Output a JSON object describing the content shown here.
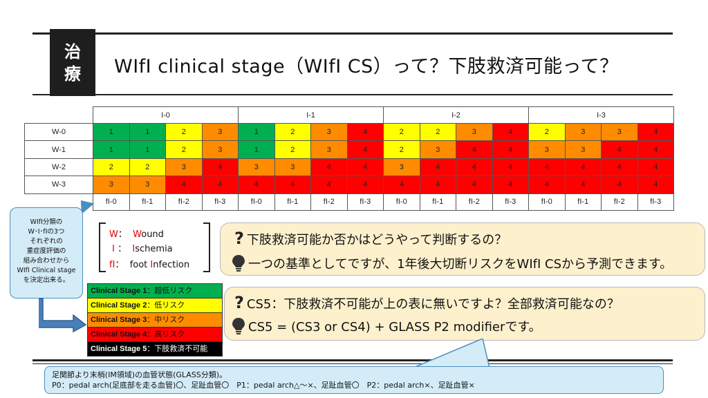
{
  "header": {
    "badge_line1": "治",
    "badge_line2": "療",
    "title": "WIfI clinical stage（WIfI CS）って？下肢救済可能って？"
  },
  "table": {
    "ischemia_headers": [
      "I-0",
      "I-1",
      "I-2",
      "I-3"
    ],
    "wound_rows": [
      "W-0",
      "W-1",
      "W-2",
      "W-3"
    ],
    "fi_footer": [
      "fI-0",
      "fI-1",
      "fI-2",
      "fI-3",
      "fI-0",
      "fI-1",
      "fI-2",
      "fI-3",
      "fI-0",
      "fI-1",
      "fI-2",
      "fI-3",
      "fI-0",
      "fI-1",
      "fI-2",
      "fI-3"
    ],
    "values": [
      [
        "1",
        "1",
        "2",
        "3",
        "1",
        "2",
        "3",
        "4",
        "2",
        "2",
        "3",
        "4",
        "2",
        "3",
        "3",
        "4"
      ],
      [
        "1",
        "1",
        "2",
        "3",
        "1",
        "2",
        "3",
        "4",
        "2",
        "3",
        "4",
        "4",
        "3",
        "3",
        "4",
        "4"
      ],
      [
        "2",
        "2",
        "3",
        "4",
        "3",
        "3",
        "4",
        "4",
        "3",
        "4",
        "4",
        "4",
        "4",
        "4",
        "4",
        "4"
      ],
      [
        "3",
        "3",
        "4",
        "4",
        "4",
        "4",
        "4",
        "4",
        "4",
        "4",
        "4",
        "4",
        "4",
        "4",
        "4",
        "4"
      ]
    ],
    "stage_colors": {
      "1": "#00b050",
      "2": "#ffff00",
      "3": "#ff8c00",
      "4": "#ff0000"
    }
  },
  "callout": {
    "lines": [
      "WIfI分類の",
      "W･I･fIの3つ",
      "それぞれの",
      "重症度評価の",
      "組み合わせから",
      "WIfI Clinical stage",
      "を決定出来る。"
    ]
  },
  "legend": {
    "w_letter": "W",
    "w_sep": "：",
    "w_text_red": "W",
    "w_text_rest": "ound",
    "i_letter": "I",
    "i_sep": "：",
    "i_text_red": "I",
    "i_text_rest": "schemia",
    "fi_letter": "fI",
    "fi_sep": "：",
    "fi_text_pre": "foot ",
    "fi_text_red": "I",
    "fi_text_rest": "nfection"
  },
  "stages": [
    {
      "label": "Clinical Stage 1",
      "desc": "：超低リスク",
      "color": "#00b050",
      "text_color": "#111111"
    },
    {
      "label": "Clinical Stage 2",
      "desc": "：低リスク",
      "color": "#ffff00",
      "text_color": "#111111"
    },
    {
      "label": "Clinical Stage 3",
      "desc": "：中リスク",
      "color": "#ff8c00",
      "text_color": "#111111"
    },
    {
      "label": "Clinical Stage 4",
      "desc": "：高リスク",
      "color": "#ff0000",
      "text_color": "#111111"
    },
    {
      "label": "Clinical Stage 5",
      "desc": "：下肢救済不可能",
      "color": "#000000",
      "text_color": "#ffffff"
    }
  ],
  "qa1": {
    "q_mark": "?",
    "question": "下肢救済可能か否かはどうやって判断するの？",
    "answer": "一つの基準としてですが、1年後大切断リスクをWIfI CSから予測できます。"
  },
  "qa2": {
    "q_mark": "?",
    "question": "CS5：下肢救済不可能が上の表に無いですよ？全部救済可能なの？",
    "answer": "CS5 = (CS3 or CS4) + GLASS P2 modifierです。"
  },
  "footnote": {
    "line1": "足関節より末梢(IM領域)の血管状態(GLASS分類)。",
    "line2": "P0：pedal arch(足底部を走る血管)〇、足趾血管〇　P1：pedal arch△～×、足趾血管〇　P2：pedal arch×、足趾血管×"
  }
}
